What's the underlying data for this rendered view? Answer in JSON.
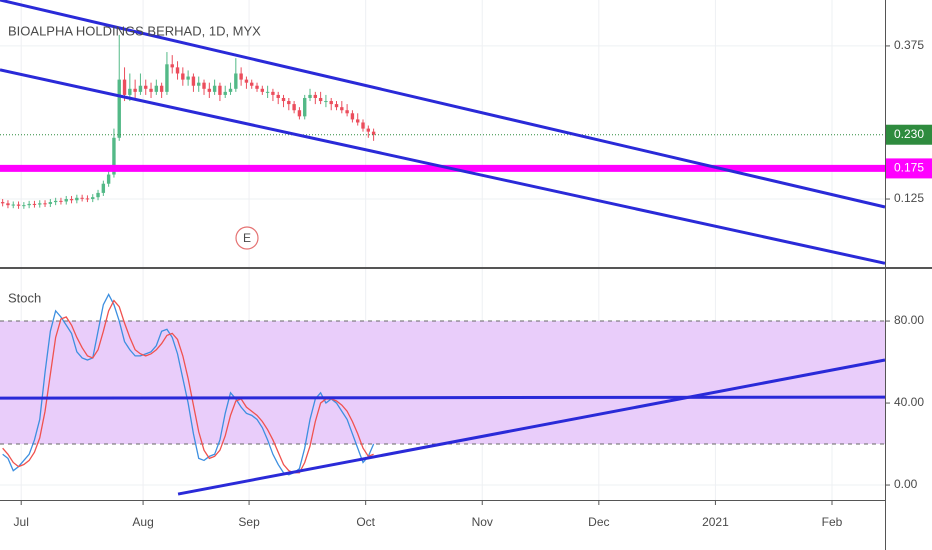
{
  "chart_data": [
    {
      "type": "candlestick",
      "title": "BIOALPHA HOLDINGS BERHAD, 1D, MYX",
      "event_marker": "E",
      "open": [
        0.12,
        0.118,
        0.115,
        0.116,
        0.114,
        0.115,
        0.117,
        0.116,
        0.118,
        0.117,
        0.12,
        0.122,
        0.121,
        0.125,
        0.123,
        0.127,
        0.126,
        0.125,
        0.128,
        0.135,
        0.15,
        0.165,
        0.225,
        0.32,
        0.295,
        0.305,
        0.3,
        0.31,
        0.305,
        0.3,
        0.31,
        0.3,
        0.345,
        0.34,
        0.33,
        0.32,
        0.325,
        0.31,
        0.315,
        0.305,
        0.3,
        0.31,
        0.295,
        0.3,
        0.305,
        0.33,
        0.32,
        0.315,
        0.31,
        0.305,
        0.3,
        0.3,
        0.295,
        0.29,
        0.285,
        0.28,
        0.27,
        0.26,
        0.29,
        0.295,
        0.29,
        0.285,
        0.285,
        0.28,
        0.275,
        0.27,
        0.265,
        0.255,
        0.25,
        0.24,
        0.235
      ],
      "high": [
        0.125,
        0.123,
        0.121,
        0.121,
        0.12,
        0.122,
        0.122,
        0.123,
        0.123,
        0.125,
        0.127,
        0.127,
        0.13,
        0.13,
        0.132,
        0.132,
        0.131,
        0.133,
        0.14,
        0.155,
        0.175,
        0.24,
        0.393,
        0.34,
        0.33,
        0.32,
        0.33,
        0.32,
        0.315,
        0.32,
        0.315,
        0.365,
        0.36,
        0.35,
        0.34,
        0.335,
        0.33,
        0.325,
        0.32,
        0.315,
        0.32,
        0.315,
        0.31,
        0.315,
        0.355,
        0.34,
        0.325,
        0.32,
        0.315,
        0.31,
        0.31,
        0.305,
        0.3,
        0.295,
        0.29,
        0.285,
        0.275,
        0.295,
        0.305,
        0.3,
        0.3,
        0.295,
        0.29,
        0.285,
        0.285,
        0.28,
        0.27,
        0.265,
        0.255,
        0.245,
        0.24
      ],
      "low": [
        0.113,
        0.11,
        0.11,
        0.109,
        0.109,
        0.11,
        0.111,
        0.111,
        0.112,
        0.112,
        0.115,
        0.116,
        0.116,
        0.118,
        0.118,
        0.121,
        0.12,
        0.12,
        0.123,
        0.13,
        0.145,
        0.16,
        0.22,
        0.285,
        0.285,
        0.29,
        0.295,
        0.295,
        0.29,
        0.295,
        0.29,
        0.295,
        0.33,
        0.32,
        0.31,
        0.31,
        0.3,
        0.3,
        0.295,
        0.29,
        0.295,
        0.285,
        0.29,
        0.295,
        0.3,
        0.31,
        0.305,
        0.305,
        0.3,
        0.295,
        0.29,
        0.285,
        0.28,
        0.275,
        0.27,
        0.265,
        0.255,
        0.255,
        0.285,
        0.28,
        0.28,
        0.275,
        0.27,
        0.27,
        0.265,
        0.26,
        0.25,
        0.245,
        0.235,
        0.225,
        0.22
      ],
      "close": [
        0.118,
        0.115,
        0.116,
        0.114,
        0.115,
        0.117,
        0.116,
        0.118,
        0.117,
        0.12,
        0.122,
        0.121,
        0.125,
        0.123,
        0.127,
        0.126,
        0.125,
        0.128,
        0.135,
        0.15,
        0.165,
        0.225,
        0.32,
        0.295,
        0.305,
        0.3,
        0.31,
        0.305,
        0.3,
        0.31,
        0.3,
        0.345,
        0.34,
        0.33,
        0.32,
        0.325,
        0.31,
        0.315,
        0.305,
        0.3,
        0.31,
        0.295,
        0.3,
        0.305,
        0.33,
        0.32,
        0.315,
        0.31,
        0.305,
        0.3,
        0.3,
        0.295,
        0.29,
        0.285,
        0.28,
        0.27,
        0.26,
        0.29,
        0.295,
        0.29,
        0.285,
        0.285,
        0.28,
        0.275,
        0.27,
        0.265,
        0.255,
        0.25,
        0.24,
        0.235,
        0.23
      ],
      "up_color": "#53b987",
      "down_color": "#eb4d5c",
      "xlim": [
        0,
        167
      ],
      "ylim": [
        0.014,
        0.45
      ],
      "yticks": [
        0.125,
        0.375
      ],
      "grid": true,
      "last_price": {
        "value": 0.23,
        "label": "0.230",
        "color": "#2e8b3e"
      },
      "hlines": [
        {
          "value": 0.175,
          "label": "0.175",
          "color": "#ff00ff"
        }
      ],
      "trendlines": [
        {
          "x": [
            0,
            167
          ],
          "y": [
            0.45,
            0.112
          ],
          "color": "#2a2ad8"
        },
        {
          "x": [
            0,
            167
          ],
          "y": [
            0.336,
            0.02
          ],
          "color": "#2a2ad8"
        }
      ]
    },
    {
      "type": "line",
      "title": "Stoch",
      "series": [
        {
          "color": "#3d8fe0",
          "values": [
            15,
            13,
            7,
            9,
            12,
            15,
            22,
            32,
            55,
            75,
            85,
            82,
            78,
            74,
            65,
            62,
            61,
            62,
            75,
            88,
            93,
            88,
            80,
            70,
            66,
            63,
            63,
            64,
            65,
            68,
            75,
            76,
            72,
            64,
            52,
            40,
            25,
            13,
            12,
            14,
            15,
            22,
            35,
            45,
            42,
            38,
            35,
            34,
            32,
            28,
            22,
            15,
            10,
            6,
            5,
            6,
            8,
            18,
            32,
            42,
            45,
            40,
            42,
            40,
            36,
            32,
            25,
            18,
            11,
            14,
            20
          ]
        },
        {
          "color": "#f0524f",
          "values": [
            18,
            15,
            11,
            9,
            10,
            12,
            16,
            23,
            36,
            54,
            72,
            81,
            82,
            78,
            72,
            67,
            63,
            62,
            66,
            75,
            85,
            90,
            87,
            79,
            72,
            66,
            64,
            63,
            64,
            66,
            69,
            73,
            74,
            71,
            63,
            52,
            39,
            26,
            17,
            13,
            14,
            17,
            24,
            34,
            41,
            42,
            38,
            36,
            34,
            31,
            27,
            22,
            16,
            10,
            7,
            6,
            6,
            11,
            19,
            31,
            40,
            42,
            42,
            41,
            39,
            36,
            31,
            25,
            18,
            14,
            15
          ]
        }
      ],
      "xlim": [
        0,
        167
      ],
      "xticks": [
        {
          "value": 4,
          "label": "Jul"
        },
        {
          "value": 27,
          "label": "Aug"
        },
        {
          "value": 47,
          "label": "Sep"
        },
        {
          "value": 69,
          "label": "Oct"
        },
        {
          "value": 91,
          "label": "Nov"
        },
        {
          "value": 113,
          "label": "Dec"
        },
        {
          "value": 135,
          "label": "2021"
        },
        {
          "value": 157,
          "label": "Feb"
        }
      ],
      "ylim": [
        -7.3,
        105.4
      ],
      "yticks": [
        {
          "value": 80,
          "label": "80.00"
        },
        {
          "value": 40,
          "label": "40.00"
        },
        {
          "value": 0,
          "label": "0.00"
        }
      ],
      "band": [
        20,
        80
      ],
      "band_color": "#e9cdfa",
      "grid": true,
      "trendlines": [
        {
          "x": [
            0,
            167
          ],
          "y": [
            42.4,
            42.9
          ],
          "color": "#2a2ad8"
        },
        {
          "x": [
            33.6,
            167
          ],
          "y": [
            -4.4,
            61
          ],
          "color": "#2a2ad8"
        }
      ]
    }
  ]
}
